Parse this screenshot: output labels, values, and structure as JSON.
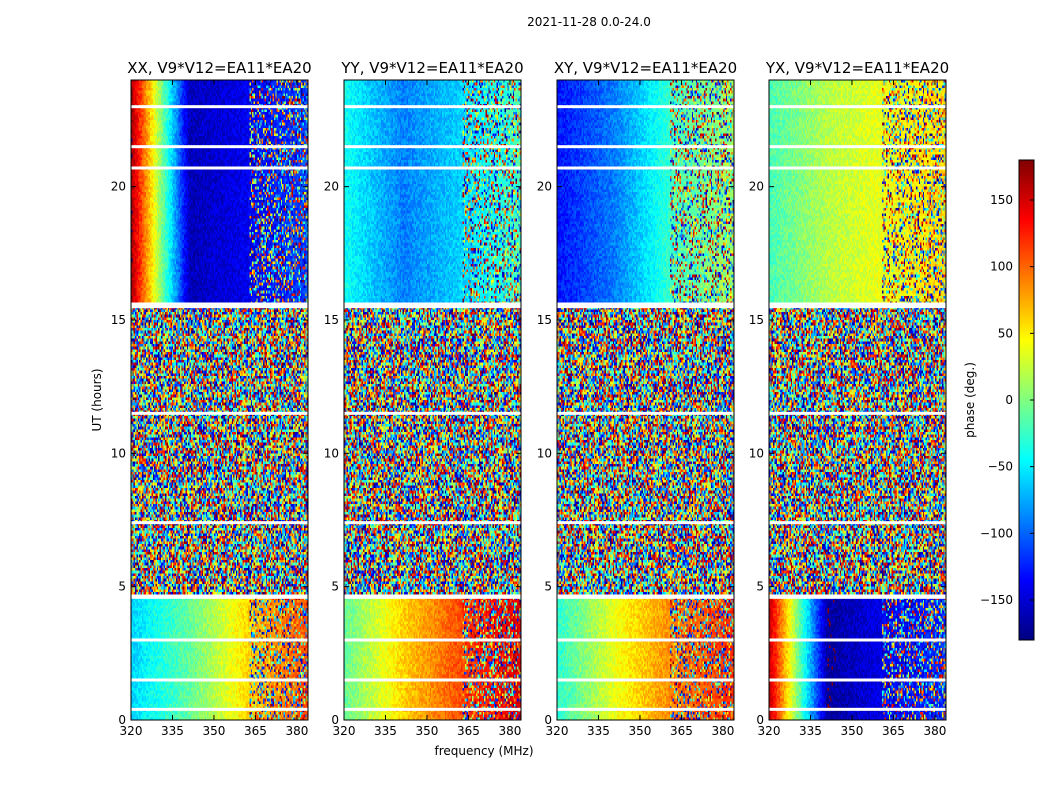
{
  "chart_data": {
    "type": "heatmap",
    "title": "2021-11-28 0.0-24.0",
    "xlabel": "frequency (MHz)",
    "ylabel": "UT (hours)",
    "xlim": [
      320,
      384
    ],
    "ylim": [
      0,
      24
    ],
    "xticks": [
      "320",
      "335",
      "350",
      "365",
      "380"
    ],
    "xtick_values": [
      320,
      335,
      350,
      365,
      380
    ],
    "yticks": [
      "0",
      "5",
      "10",
      "15",
      "20"
    ],
    "ytick_values": [
      0,
      5,
      10,
      15,
      20
    ],
    "colorbar": {
      "label": "phase (deg.)",
      "range": [
        -180,
        180
      ],
      "ticks": [
        "150",
        "100",
        "50",
        "0",
        "−50",
        "−100",
        "−150"
      ],
      "tick_values": [
        150,
        100,
        50,
        0,
        -50,
        -100,
        -150
      ],
      "colormap": "jet"
    },
    "panels": [
      {
        "title": "XX, V9*V12=EA11*EA20",
        "day_phase_deg": [
          170,
          -160,
          -140,
          -110
        ],
        "early_phase_deg": [
          -60,
          -10,
          60,
          110
        ],
        "rfi_start_mhz": 363
      },
      {
        "title": "YY, V9*V12=EA11*EA20",
        "day_phase_deg": [
          -40,
          -90,
          -60,
          -20
        ],
        "early_phase_deg": [
          -10,
          60,
          110,
          150
        ],
        "rfi_start_mhz": 363
      },
      {
        "title": "XY, V9*V12=EA11*EA20",
        "day_phase_deg": [
          -130,
          -90,
          -20,
          10
        ],
        "early_phase_deg": [
          -30,
          40,
          90,
          120
        ],
        "rfi_start_mhz": 361
      },
      {
        "title": "YX, V9*V12=EA11*EA20",
        "day_phase_deg": [
          -20,
          20,
          40,
          60
        ],
        "early_phase_deg": [
          160,
          -170,
          -140,
          -120
        ],
        "rfi_start_mhz": 361
      }
    ],
    "blank_rows_ut": [
      0.4,
      1.5,
      3.0,
      4.6,
      4.65,
      7.4,
      11.5,
      15.5,
      15.6,
      20.7,
      21.5,
      23.0
    ],
    "noise_ut_range": [
      4.7,
      15.5
    ]
  },
  "colors": {
    "background": "#ffffff",
    "frame": "#000000"
  }
}
